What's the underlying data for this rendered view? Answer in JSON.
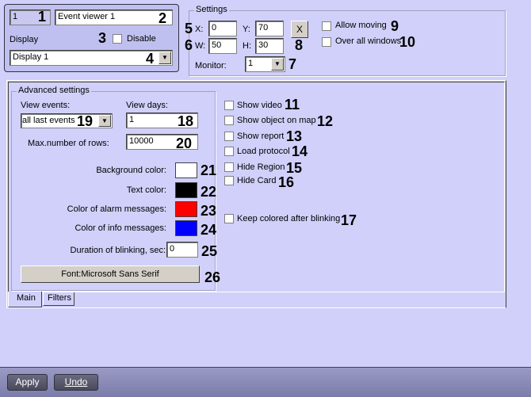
{
  "header": {
    "id": "1",
    "name": "Event viewer 1",
    "display_label": "Display",
    "disable_label": "Disable",
    "display_value": "Display 1"
  },
  "settings": {
    "title": "Settings",
    "x_label": "X:",
    "x": "0",
    "y_label": "Y:",
    "y": "70",
    "w_label": "W:",
    "w": "50",
    "h_label": "H:",
    "h": "30",
    "reset_label": "X",
    "monitor_label": "Monitor:",
    "monitor": "1",
    "allow_moving": "Allow moving",
    "over_all": "Over all windows"
  },
  "advanced": {
    "title": "Advanced settings",
    "view_events_label": "View events:",
    "view_events": "all last events",
    "view_days_label": "View days:",
    "view_days": "1",
    "max_rows_label": "Max.number of rows:",
    "max_rows": "10000",
    "bg_label": "Background color:",
    "text_label": "Text color:",
    "alarm_label": "Color of alarm messages:",
    "info_label": "Color of info messages:",
    "blink_label": "Duration of blinking, sec:",
    "blink": "0",
    "font_button": "Font:Microsoft Sans Serif"
  },
  "colors": {
    "background": "#ffffff",
    "text": "#000000",
    "alarm": "#ff0000",
    "info": "#0000ff"
  },
  "options": [
    "Show video",
    "Show object on map",
    "Show report",
    "Load protocol",
    "Hide Region",
    "Hide Card",
    "Keep colored after blinking"
  ],
  "tabs": [
    "Main",
    "Filters"
  ],
  "footer": {
    "apply": "Apply",
    "undo": "Undo"
  },
  "callouts": [
    "1",
    "2",
    "3",
    "4",
    "5",
    "6",
    "7",
    "8",
    "9",
    "10",
    "11",
    "12",
    "13",
    "14",
    "15",
    "16",
    "17",
    "18",
    "19",
    "20",
    "21",
    "22",
    "23",
    "24",
    "25",
    "26"
  ]
}
